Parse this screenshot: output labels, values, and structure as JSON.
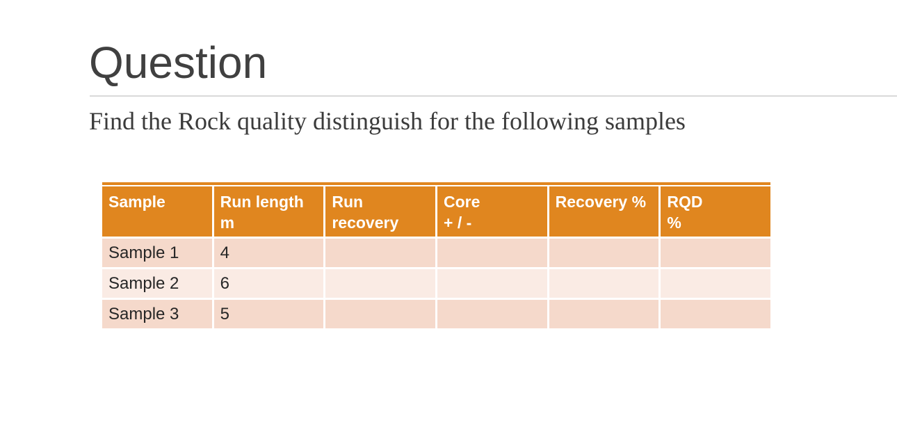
{
  "slide": {
    "title": "Question",
    "subtitle": "Find the Rock quality distinguish for the following samples"
  },
  "colors": {
    "header_fill": "#E0861F",
    "band_dark": "#F5D9CB",
    "band_light": "#FAEBE4",
    "header_text": "#FFFFFF",
    "title_text": "#404040",
    "body_text": "#262626",
    "divider": "#D9D9D9"
  },
  "table": {
    "headers": [
      {
        "line1": "Sample",
        "line2": ""
      },
      {
        "line1": "Run length",
        "line2": "m"
      },
      {
        "line1": "Run",
        "line2": "recovery"
      },
      {
        "line1": "Core",
        "line2": "+ / -"
      },
      {
        "line1": "Recovery %",
        "line2": ""
      },
      {
        "line1": "RQD",
        "line2": "%"
      }
    ],
    "rows": [
      {
        "cells": [
          "Sample 1",
          "4",
          "",
          "",
          "",
          ""
        ]
      },
      {
        "cells": [
          "Sample 2",
          "6",
          "",
          "",
          "",
          ""
        ]
      },
      {
        "cells": [
          "Sample 3",
          "5",
          "",
          "",
          "",
          ""
        ]
      }
    ]
  }
}
